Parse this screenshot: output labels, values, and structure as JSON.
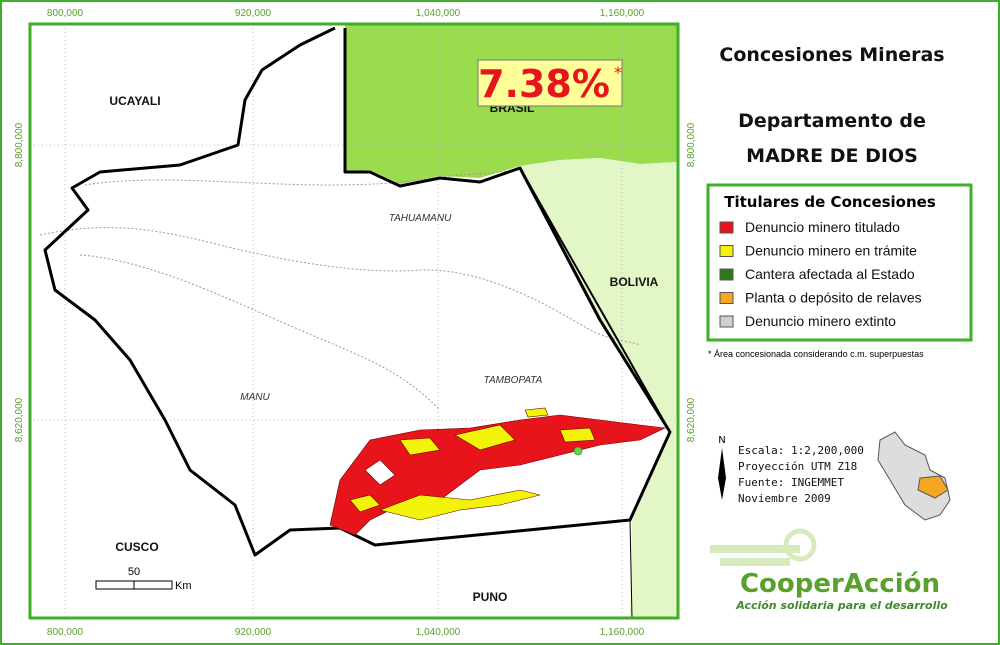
{
  "map": {
    "title": "Concesiones Mineras",
    "subtitle_1": "Departamento de",
    "subtitle_2": "MADRE DE DIOS",
    "percent": {
      "value": "7.38%",
      "note_mark": "*"
    },
    "hidden_label": "BRASIL",
    "x_coords": [
      "800,000",
      "920,000",
      "1,040,000",
      "1,160,000"
    ],
    "y_coords": [
      "8,800,000",
      "8,620,000"
    ],
    "regions": [
      "UCAYALI",
      "BOLIVIA",
      "CUSCO",
      "PUNO"
    ],
    "provinces": [
      "TAHUAMANU",
      "MANU",
      "TAMBOPATA"
    ],
    "scale_bar": {
      "value": "50",
      "unit": "Km"
    }
  },
  "legend": {
    "title": "Titulares de Concesiones",
    "items": [
      {
        "label": "Denuncio minero titulado",
        "color": "#e8141b"
      },
      {
        "label": "Denuncio minero en trámite",
        "color": "#f2f20a"
      },
      {
        "label": "Cantera afectada al Estado",
        "color": "#2a7a1a"
      },
      {
        "label": "Planta o depósito de relaves",
        "color": "#f5a623"
      },
      {
        "label": "Denuncio minero extinto",
        "color": "#d0d0d0"
      }
    ]
  },
  "footnote": "* Área concesionada considerando c.m. superpuestas",
  "info": {
    "north": "N",
    "lines": [
      "Escala: 1:2,200,000",
      "Proyección UTM Z18",
      "Fuente: INGEMMET",
      "Noviembre 2009"
    ]
  },
  "logo": {
    "name": "CooperAcción",
    "tagline": "Acción solidaria para el desarrollo"
  }
}
